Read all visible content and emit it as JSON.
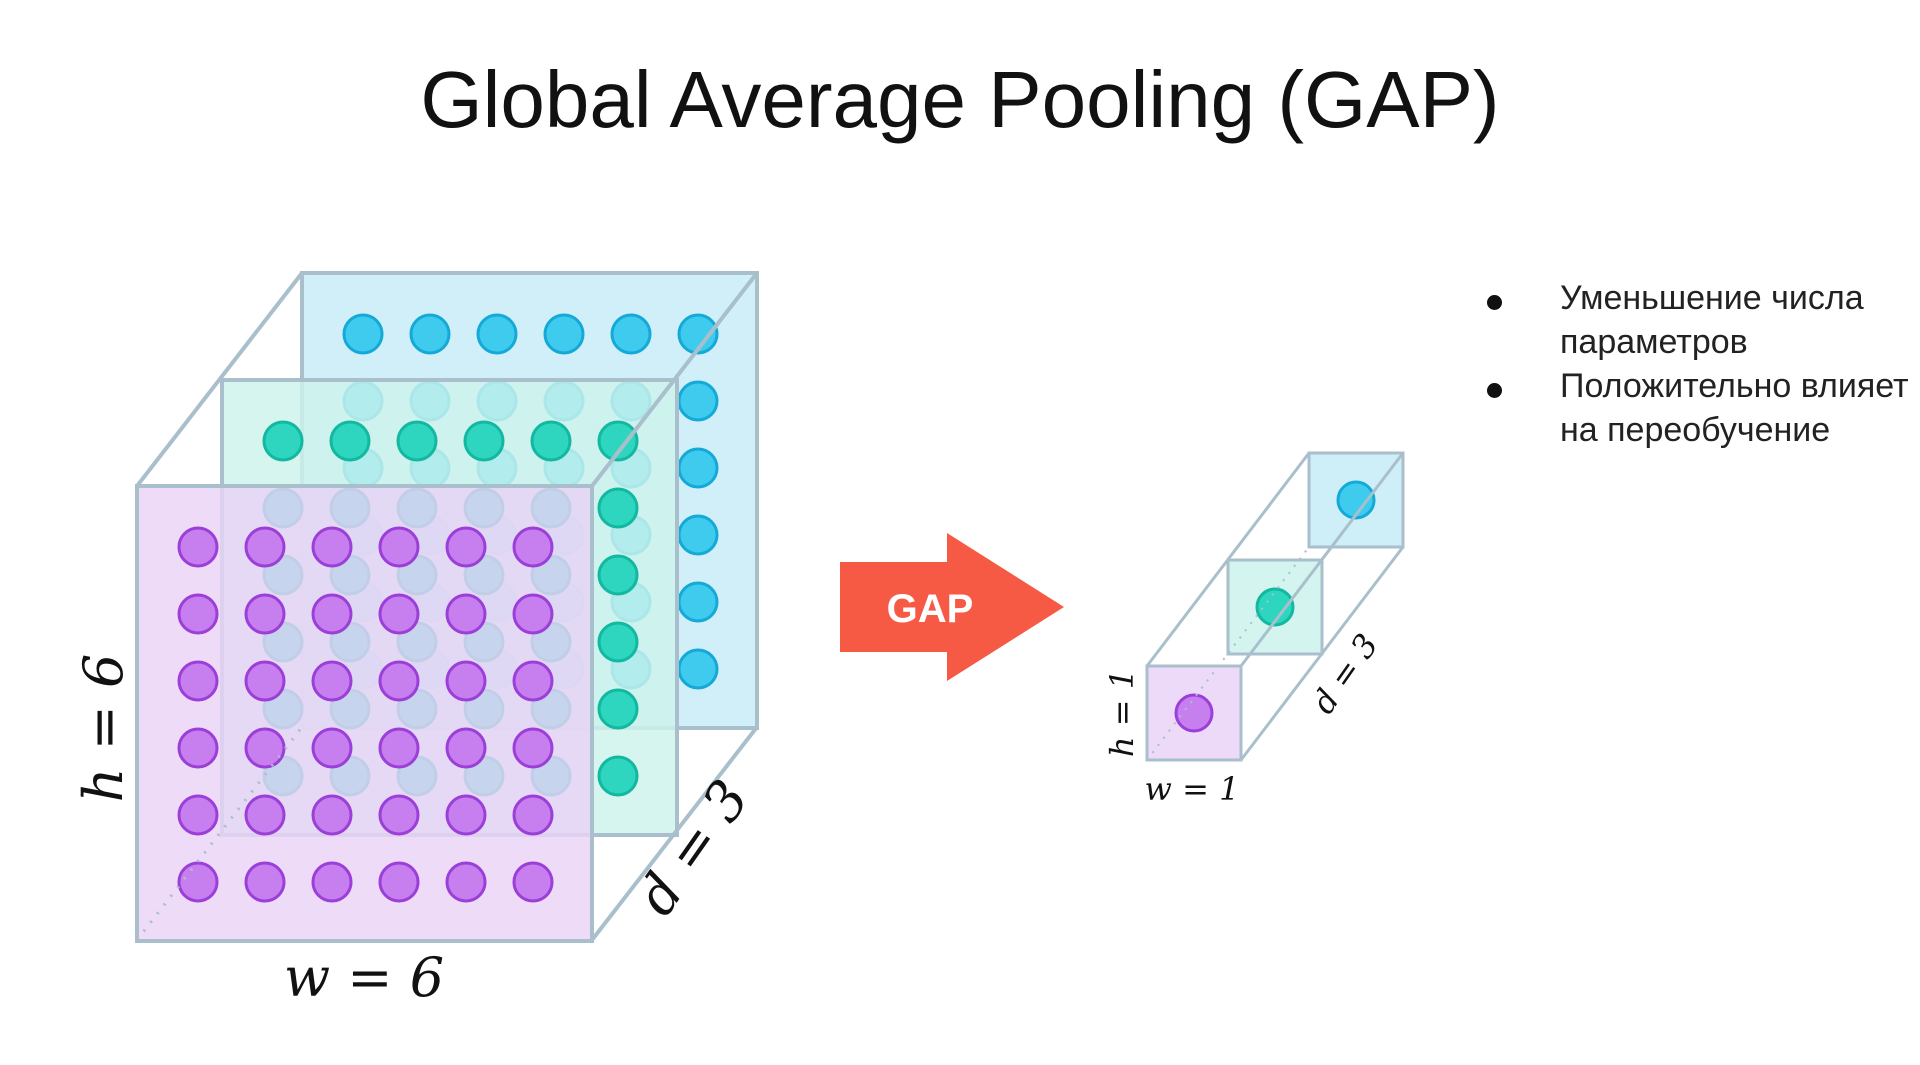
{
  "slide": {
    "title": "Global Average Pooling (GAP)"
  },
  "input_tensor": {
    "h_label": "h = 6",
    "w_label": "w = 6",
    "d_label": "d = 3",
    "rows": 6,
    "cols": 6,
    "channels": 3
  },
  "arrow": {
    "label": "GAP",
    "color": "#f65a44"
  },
  "output_tensor": {
    "h_label": "h = 1",
    "w_label": "w = 1",
    "d_label": "d = 3",
    "channels": 3
  },
  "channel_colors": {
    "front": {
      "fill": "#e9d3f7",
      "dot": "#c77ff0",
      "dot_stroke": "#9b3fd8"
    },
    "middle": {
      "fill": "#cdf3ec",
      "dot": "#2fd6bf",
      "dot_stroke": "#12b8a0"
    },
    "back": {
      "fill": "#c6ebf7",
      "dot": "#3ecbee",
      "dot_stroke": "#15a9d8"
    },
    "edge": "#a9bfcc"
  },
  "bullets": [
    "Уменьшение числа параметров",
    "Положительно влияет на переобучение"
  ]
}
